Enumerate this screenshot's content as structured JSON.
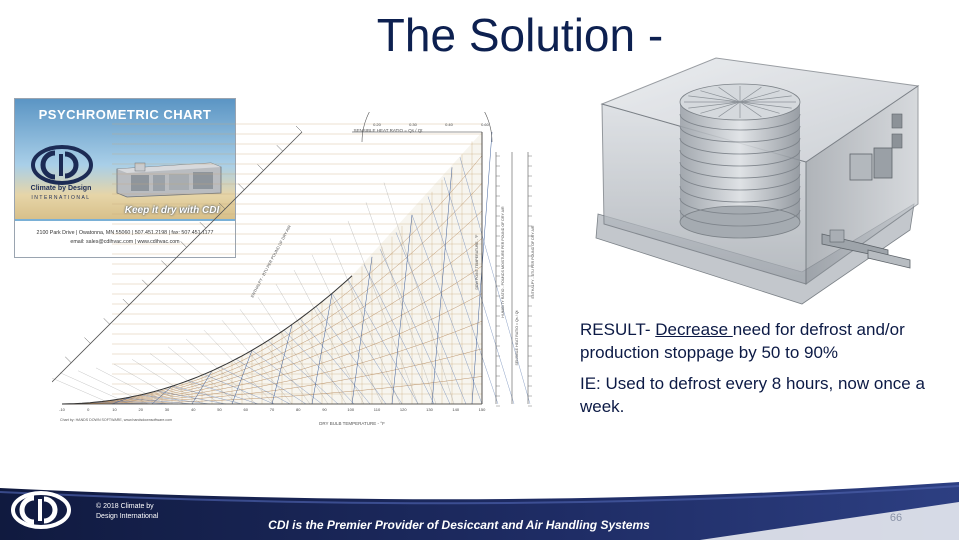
{
  "slide": {
    "title": "The Solution -",
    "page_number": "66"
  },
  "card": {
    "title": "PSYCHROMETRIC CHART",
    "brand_name": "Climate by Design",
    "brand_sub": "INTERNATIONAL",
    "tagline": "Keep it dry with CDI",
    "address_line1": "2100 Park Drive | Owatonna, MN 55060 | 507.451.2198 | fax: 507.451.1177",
    "address_line2": "email: sales@cdihvac.com | www.cdihvac.com"
  },
  "chart": {
    "top_label": "SENSIBLE HEAT RATIO = Qs / Qt",
    "bottom_label": "DRY BULB TEMPERATURE - °F",
    "credit": "Chart by: HANDS DOWN SOFTWARE, www.handsdownsoftware.com",
    "left_axis_label": "ENTHALPY - BTU PER POUND OF DRY AIR",
    "right_axis_label_1": "DEW POINT TEMPERATURE - °F",
    "right_axis_label_2": "HUMIDITY RATIO - POUNDS MOISTURE PER POUND OF DRY AIR",
    "right_axis_label_3": "SENSIBLE HEAT RATIO = Qs / Qt",
    "right_axis_label_4": "ENTHALPY - BTU PER POUND OF DRY AIR",
    "shr_ticks": [
      "0.20",
      "0.30",
      "0.40",
      "0.60"
    ],
    "x_ticks": [
      "-10",
      "0",
      "10",
      "20",
      "30",
      "40",
      "50",
      "60",
      "70",
      "80",
      "90",
      "100",
      "110",
      "120",
      "130",
      "140",
      "150"
    ]
  },
  "result": {
    "p1_prefix": "RESULT- ",
    "p1_underlined": "Decrease ",
    "p1_suffix": "need for defrost and/or production stoppage by 50 to 90%",
    "p2": "IE: Used to defrost every 8 hours, now once a week."
  },
  "footer": {
    "copyright_line1": "© 2018 Climate by",
    "copyright_line2": "Design International",
    "tagline": "CDI is the Premier Provider of Desiccant and Air Handling Systems"
  },
  "colors": {
    "title": "#0d2050",
    "footer_dark": "#15204a",
    "footer_mid": "#2a3b7a",
    "text_dark": "#0c1a45"
  }
}
